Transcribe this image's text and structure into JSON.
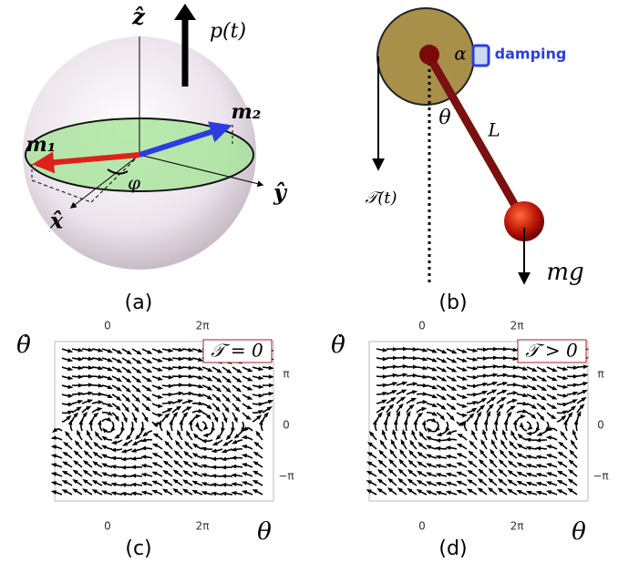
{
  "panel_a": {
    "label": "(a)",
    "z_axis": "ẑ",
    "force": "p(t)",
    "m2": "m₂",
    "m1": "m₁",
    "angle": "φ",
    "y_axis": "ŷ",
    "x_axis": "x̂"
  },
  "panel_b": {
    "label": "(b)",
    "alpha": "α",
    "damping": "damping",
    "theta": "θ",
    "length": "L",
    "torque": "𝒯(t)",
    "weight": "mg"
  },
  "panel_c": {
    "label": "(c)",
    "y_label": "θ̇",
    "x_label": "θ",
    "legend": "𝒯 = 0",
    "top_ticks": [
      "0",
      "2π"
    ],
    "bottom_ticks": [
      "0",
      "2π"
    ],
    "right_ticks": [
      "π",
      "0",
      "−π"
    ]
  },
  "panel_d": {
    "label": "(d)",
    "y_label": "θ̇",
    "x_label": "θ",
    "legend": "𝒯 > 0",
    "top_ticks": [
      "0",
      "2π"
    ],
    "bottom_ticks": [
      "0",
      "2π"
    ],
    "right_ticks": [
      "π",
      "0",
      "−π"
    ]
  }
}
